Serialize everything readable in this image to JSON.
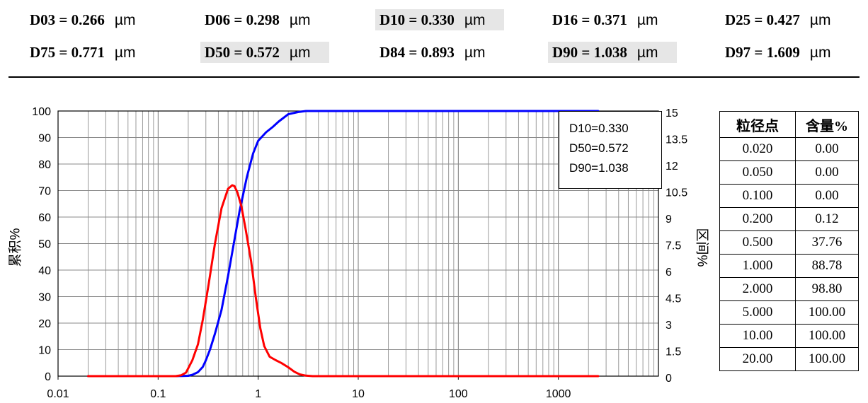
{
  "stats": [
    {
      "key": "D03 = 0.266",
      "unit": "µm",
      "highlight": false
    },
    {
      "key": "D06 = 0.298",
      "unit": "µm",
      "highlight": false
    },
    {
      "key": "D10 = 0.330",
      "unit": "µm",
      "highlight": true
    },
    {
      "key": "D16 = 0.371",
      "unit": "µm",
      "highlight": false
    },
    {
      "key": "D25 = 0.427",
      "unit": "µm",
      "highlight": false
    },
    {
      "key": "D75 = 0.771",
      "unit": "µm",
      "highlight": false
    },
    {
      "key": "D50 = 0.572",
      "unit": "µm",
      "highlight": true
    },
    {
      "key": "D84 = 0.893",
      "unit": "µm",
      "highlight": false
    },
    {
      "key": "D90 = 1.038",
      "unit": "µm",
      "highlight": true
    },
    {
      "key": "D97 = 1.609",
      "unit": "µm",
      "highlight": false
    }
  ],
  "legend": [
    "D10=0.330",
    "D50=0.572",
    "D90=1.038"
  ],
  "table": {
    "headers": [
      "粒径点",
      "含量%"
    ],
    "rows": [
      [
        "0.020",
        "0.00"
      ],
      [
        "0.050",
        "0.00"
      ],
      [
        "0.100",
        "0.00"
      ],
      [
        "0.200",
        "0.12"
      ],
      [
        "0.500",
        "37.76"
      ],
      [
        "1.000",
        "88.78"
      ],
      [
        "2.000",
        "98.80"
      ],
      [
        "5.000",
        "100.00"
      ],
      [
        "10.00",
        "100.00"
      ],
      [
        "20.00",
        "100.00"
      ]
    ]
  },
  "chart_data": {
    "type": "line",
    "xscale": "log",
    "xlim": [
      0.01,
      10000
    ],
    "xticks": [
      "0.01",
      "0.1",
      "1",
      "10",
      "100",
      "1000"
    ],
    "ylabel": "累积%",
    "ylim": [
      0,
      100
    ],
    "yticks": [
      "0",
      "10",
      "20",
      "30",
      "40",
      "50",
      "60",
      "70",
      "80",
      "90",
      "100"
    ],
    "y2label": "区间%",
    "y2lim": [
      0,
      15
    ],
    "y2ticks": [
      "0",
      "1.5",
      "3",
      "4.5",
      "6",
      "7.5",
      "9",
      "10.5",
      "12",
      "13.5",
      "15"
    ],
    "series": [
      {
        "color": "#0000ff",
        "axis": "left",
        "x": [
          0.02,
          0.1,
          0.15,
          0.2,
          0.22,
          0.25,
          0.28,
          0.3,
          0.33,
          0.37,
          0.43,
          0.5,
          0.57,
          0.65,
          0.77,
          0.89,
          1.0,
          1.2,
          1.4,
          1.6,
          2.0,
          2.5,
          3.0,
          5.0,
          10,
          100,
          1000,
          2500
        ],
        "y": [
          0,
          0,
          0,
          0.12,
          0.5,
          1.5,
          3.5,
          6,
          10,
          16,
          25,
          37.76,
          50,
          62,
          75,
          84,
          88.78,
          92,
          94,
          96,
          98.8,
          99.6,
          100,
          100,
          100,
          100,
          100,
          100
        ]
      },
      {
        "color": "#ff0000",
        "axis": "right",
        "x": [
          0.02,
          0.1,
          0.15,
          0.17,
          0.19,
          0.2,
          0.22,
          0.25,
          0.28,
          0.32,
          0.37,
          0.43,
          0.5,
          0.55,
          0.58,
          0.62,
          0.68,
          0.75,
          0.85,
          0.95,
          1.05,
          1.15,
          1.3,
          1.5,
          1.7,
          2.0,
          2.3,
          2.6,
          3.0,
          3.5,
          5,
          10,
          100,
          1000,
          2500
        ],
        "y": [
          0,
          0,
          0,
          0.05,
          0.2,
          0.45,
          0.9,
          1.8,
          3.2,
          5.2,
          7.5,
          9.5,
          10.6,
          10.8,
          10.75,
          10.4,
          9.6,
          8.3,
          6.5,
          4.4,
          2.7,
          1.7,
          1.1,
          0.9,
          0.75,
          0.5,
          0.25,
          0.1,
          0.03,
          0,
          0,
          0,
          0,
          0,
          0
        ]
      }
    ]
  }
}
